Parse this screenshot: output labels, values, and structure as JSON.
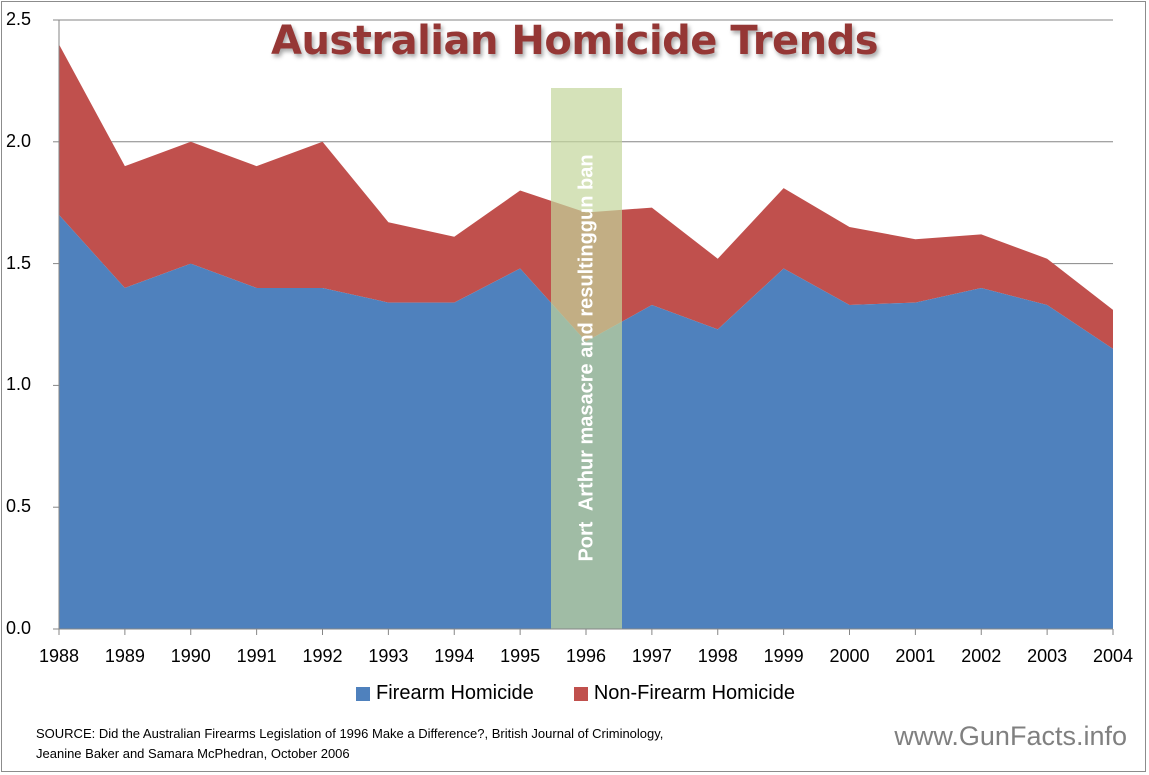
{
  "chart_data": {
    "type": "area",
    "stacked": true,
    "title": "Australian Homicide Trends",
    "xlabel": "",
    "ylabel": "",
    "ylim": [
      0,
      2.5
    ],
    "yticks": [
      "0.0",
      "0.5",
      "1.0",
      "1.5",
      "2.0",
      "2.5"
    ],
    "grid": true,
    "legend_position": "bottom",
    "categories": [
      "1988",
      "1989",
      "1990",
      "1991",
      "1992",
      "1993",
      "1994",
      "1995",
      "1996",
      "1997",
      "1998",
      "1999",
      "2000",
      "2001",
      "2002",
      "2003",
      "2004"
    ],
    "series": [
      {
        "name": "Firearm Homicide",
        "color": "#4f81bd",
        "values": [
          1.7,
          1.4,
          1.5,
          1.4,
          1.4,
          1.34,
          1.34,
          1.48,
          1.18,
          1.33,
          1.23,
          1.48,
          1.33,
          1.34,
          1.4,
          1.33,
          1.15
        ]
      },
      {
        "name": "Non-Firearm Homicide",
        "color": "#c0504d",
        "values": [
          0.7,
          0.5,
          0.5,
          0.5,
          0.6,
          0.33,
          0.27,
          0.32,
          0.53,
          0.4,
          0.29,
          0.33,
          0.32,
          0.26,
          0.22,
          0.19,
          0.16
        ]
      }
    ],
    "totals": [
      2.4,
      1.9,
      2.0,
      1.9,
      2.0,
      1.67,
      1.61,
      1.8,
      1.71,
      1.73,
      1.52,
      1.81,
      1.65,
      1.6,
      1.62,
      1.52,
      1.31
    ],
    "annotations": [
      {
        "text": "Port  Arthur masacre and resultinggun ban",
        "x": "1996",
        "orientation": "vertical",
        "band_color": "#c3d69b"
      }
    ]
  },
  "legend": {
    "items": [
      {
        "label": "Firearm Homicide",
        "color": "#4f81bd"
      },
      {
        "label": "Non-Firearm Homicide",
        "color": "#c0504d"
      }
    ]
  },
  "footer": {
    "source": "SOURCE: Did the Australian Firearms Legislation of 1996 Make a Difference?, British Journal of Criminology, Jeanine Baker and Samara McPhedran, October 2006",
    "site": "www.GunFacts.info"
  }
}
